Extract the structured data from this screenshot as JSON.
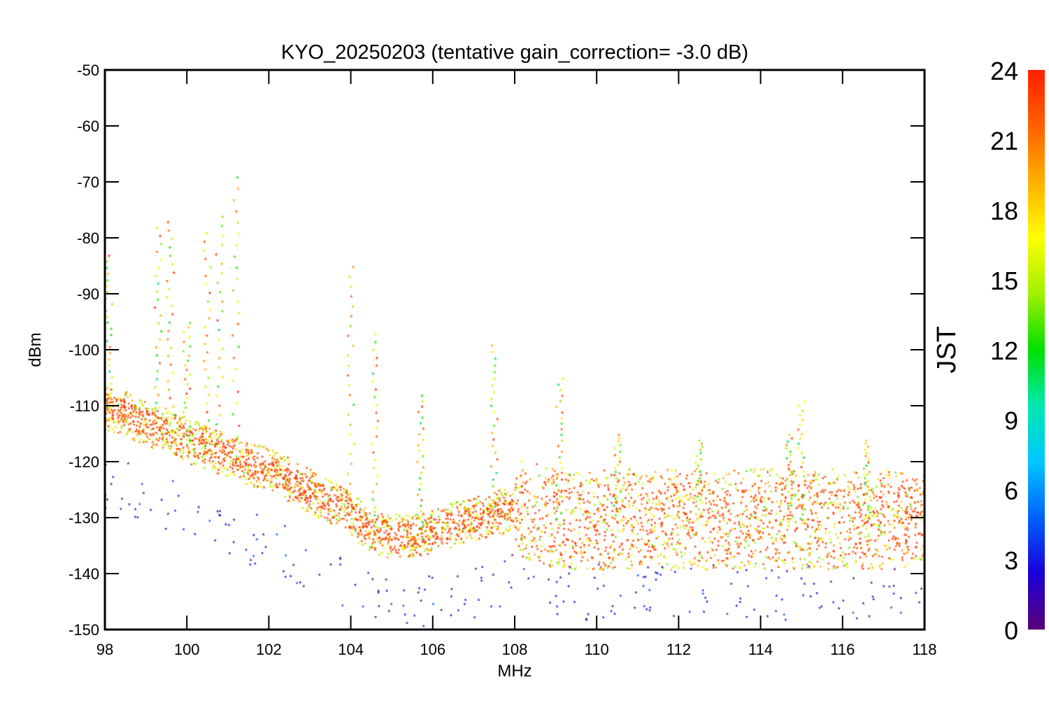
{
  "chart_data": {
    "type": "scatter",
    "title": "KYO_20250203 (tentative gain_correction= -3.0 dB)",
    "xlabel": "MHz",
    "ylabel": "dBm",
    "xlim": [
      98,
      118
    ],
    "ylim": [
      -150,
      -50
    ],
    "x_ticks": [
      "98",
      "100",
      "102",
      "104",
      "106",
      "108",
      "110",
      "112",
      "114",
      "116",
      "118"
    ],
    "y_ticks": [
      "-50",
      "-60",
      "-70",
      "-80",
      "-90",
      "-100",
      "-110",
      "-120",
      "-130",
      "-140",
      "-150"
    ],
    "colorbar": {
      "label": "JST",
      "range": [
        0,
        24
      ],
      "ticks": [
        "0",
        "3",
        "6",
        "9",
        "12",
        "15",
        "18",
        "21",
        "24"
      ],
      "colormap": [
        "#5a007a",
        "#1a00d8",
        "#0060ff",
        "#00c8ff",
        "#00e8b0",
        "#00e000",
        "#a0f000",
        "#ffff00",
        "#ffb000",
        "#ff6000",
        "#ff2000"
      ]
    },
    "marker": "asterisk",
    "series": [
      {
        "values": [
          [
            98.0,
            -111
          ],
          [
            98.5,
            -112
          ],
          [
            99.0,
            -114
          ],
          [
            99.5,
            -115
          ],
          [
            100.0,
            -117
          ],
          [
            100.5,
            -118
          ],
          [
            101.0,
            -120
          ],
          [
            101.5,
            -121
          ],
          [
            102.0,
            -122
          ],
          [
            102.5,
            -124
          ],
          [
            103.0,
            -126
          ],
          [
            103.5,
            -128
          ],
          [
            104.0,
            -130
          ],
          [
            104.5,
            -133
          ],
          [
            105.0,
            -134
          ],
          [
            105.5,
            -134
          ],
          [
            106.0,
            -133
          ],
          [
            106.5,
            -132
          ],
          [
            107.0,
            -131
          ],
          [
            107.5,
            -130
          ],
          [
            108.0,
            -129
          ],
          [
            109.0,
            -131
          ],
          [
            110.0,
            -131
          ],
          [
            111.0,
            -131
          ],
          [
            112.0,
            -131
          ],
          [
            113.0,
            -131
          ],
          [
            114.0,
            -131
          ],
          [
            115.0,
            -131
          ],
          [
            116.0,
            -131
          ],
          [
            117.0,
            -131
          ],
          [
            118.0,
            -131
          ]
        ]
      }
    ],
    "peaks_mhz_dbm": [
      [
        98.1,
        -84
      ],
      [
        99.3,
        -79
      ],
      [
        99.6,
        -78
      ],
      [
        100.0,
        -96
      ],
      [
        100.5,
        -80
      ],
      [
        100.8,
        -77
      ],
      [
        101.2,
        -70
      ],
      [
        104.0,
        -86
      ],
      [
        104.6,
        -98
      ],
      [
        105.7,
        -109
      ],
      [
        107.5,
        -100
      ],
      [
        109.1,
        -106
      ],
      [
        110.5,
        -116
      ],
      [
        112.5,
        -117
      ],
      [
        114.7,
        -116
      ],
      [
        115.0,
        -110
      ],
      [
        116.6,
        -117
      ]
    ]
  }
}
